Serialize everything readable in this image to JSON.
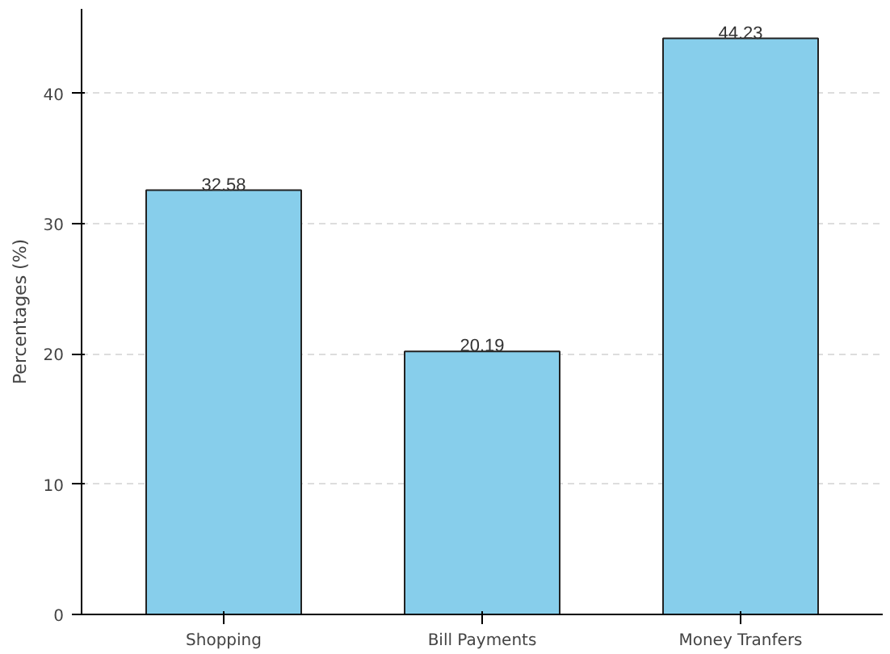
{
  "chart_data": {
    "type": "bar",
    "ylabel": "Percentages (%)",
    "categories": [
      "Shopping",
      "Bill Payments",
      "Money Tranfers"
    ],
    "values": [
      32.58,
      20.19,
      44.23
    ],
    "color": "#87ceeb",
    "ylim": [
      0,
      46.5
    ],
    "yticks": [
      0,
      10,
      20,
      30,
      40
    ],
    "grid": "y",
    "data_labels": true
  }
}
